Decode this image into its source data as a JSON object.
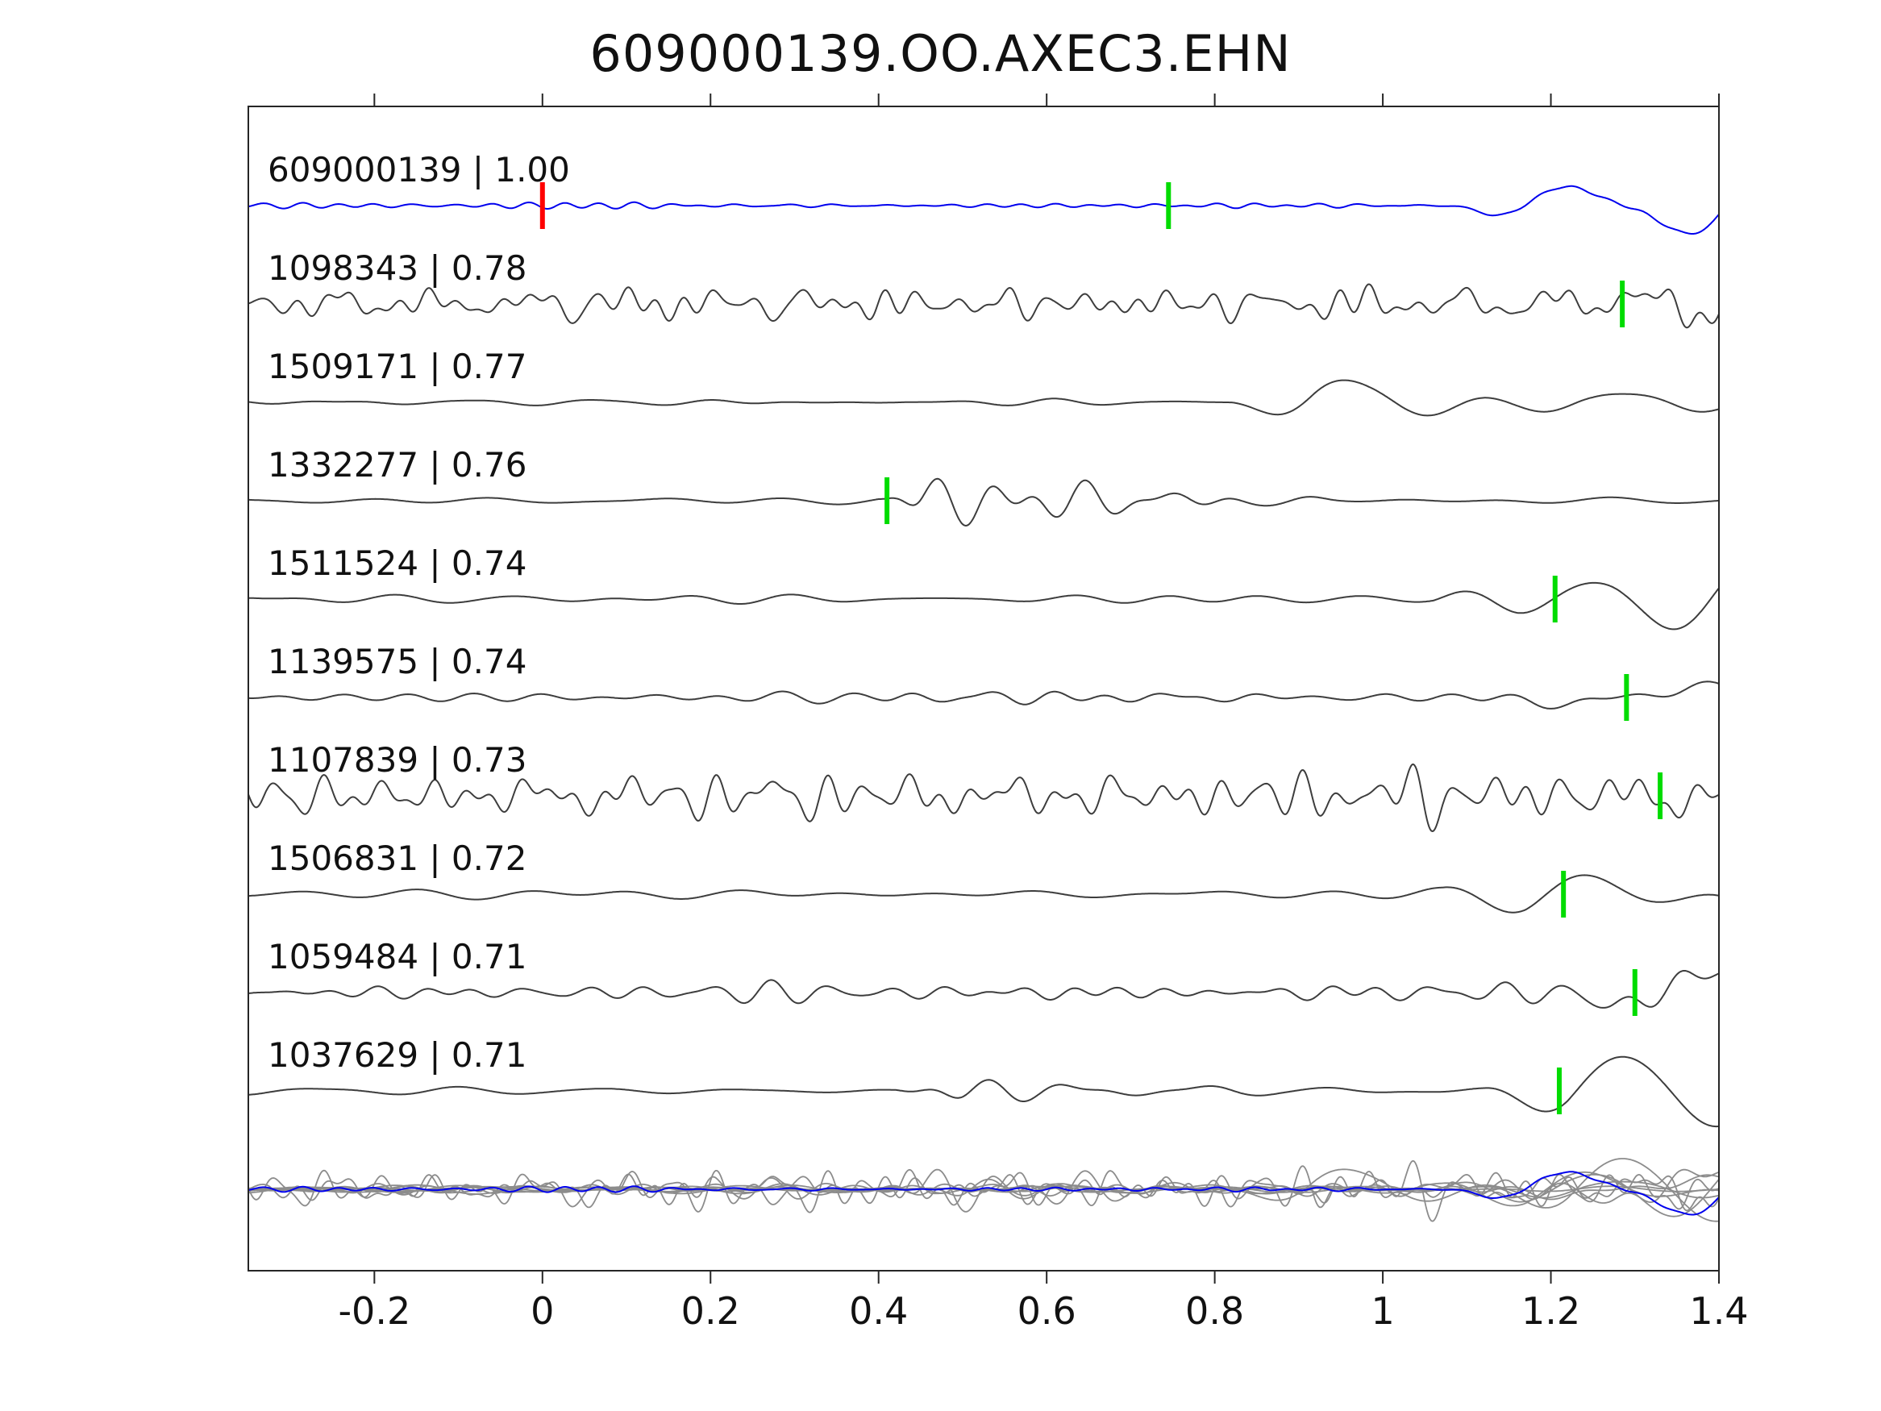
{
  "title": "609000139.OO.AXEC3.EHN",
  "chart_data": {
    "type": "line",
    "title": "609000139.OO.AXEC3.EHN",
    "xlabel": "",
    "ylabel": "",
    "grid": false,
    "axis": {
      "x_min": -0.35,
      "x_max": 1.4,
      "x_ticks": [
        -0.2,
        0,
        0.2,
        0.4,
        0.6,
        0.8,
        1,
        1.2,
        1.4
      ],
      "x_tick_labels": [
        "-0.2",
        "0",
        "0.2",
        "0.4",
        "0.6",
        "0.8",
        "1",
        "1.2",
        "1.4"
      ]
    },
    "colors": {
      "template_trace": "#0000ee",
      "detection_trace": "#3d3d3d",
      "overlay_trace": "#8c8c8c",
      "pick_red": "#ff0000",
      "pick_green": "#00dc00",
      "axis_line": "#262626",
      "text": "#111111"
    },
    "traces": [
      {
        "id": "609000139",
        "similarity": "1.00",
        "label": "609000139 | 1.00",
        "role": "template",
        "seed": 11,
        "picks": [
          {
            "t": 0.0,
            "color": "pick_red"
          },
          {
            "t": 0.745,
            "color": "pick_green"
          }
        ],
        "components": [
          {
            "freq": 24,
            "amp": 3.5,
            "env": [
              [
                -0.35,
                1
              ],
              [
                1.05,
                1
              ],
              [
                1.2,
                0.5
              ],
              [
                1.4,
                0.4
              ]
            ]
          },
          {
            "freq": 5.5,
            "amp": 50,
            "env": [
              [
                1.08,
                0
              ],
              [
                1.18,
                0.55
              ],
              [
                1.28,
                1
              ],
              [
                1.4,
                1
              ]
            ]
          }
        ]
      },
      {
        "id": "1098343",
        "similarity": "0.78",
        "label": "1098343 | 0.78",
        "role": "detection",
        "seed": 22,
        "picks": [
          {
            "t": 1.285,
            "color": "pick_green"
          }
        ],
        "components": [
          {
            "freq": 27,
            "amp": 15
          },
          {
            "freq": 13,
            "amp": 9
          },
          {
            "freq": 7,
            "amp": 22,
            "env": [
              [
                1.12,
                0
              ],
              [
                1.25,
                1
              ],
              [
                1.35,
                0.9
              ],
              [
                1.4,
                0.7
              ]
            ]
          }
        ]
      },
      {
        "id": "1509171",
        "similarity": "0.77",
        "label": "1509171 | 0.77",
        "role": "detection",
        "seed": 33,
        "picks": [],
        "components": [
          {
            "freq": 9,
            "amp": 3.5
          },
          {
            "freq": 4.6,
            "amp": 54,
            "env": [
              [
                0.82,
                0
              ],
              [
                0.92,
                0.9
              ],
              [
                1.02,
                1
              ],
              [
                1.12,
                0.85
              ],
              [
                1.25,
                0.4
              ],
              [
                1.4,
                0.3
              ]
            ]
          }
        ]
      },
      {
        "id": "1332277",
        "similarity": "0.76",
        "label": "1332277 | 0.76",
        "role": "detection",
        "seed": 44,
        "picks": [
          {
            "t": 0.41,
            "color": "pick_green"
          }
        ],
        "components": [
          {
            "freq": 6,
            "amp": 5
          },
          {
            "freq": 13,
            "amp": 40,
            "env": [
              [
                0.4,
                0
              ],
              [
                0.45,
                1
              ],
              [
                0.56,
                0.9
              ],
              [
                0.72,
                0.45
              ],
              [
                0.88,
                0.12
              ],
              [
                0.98,
                0
              ]
            ]
          }
        ]
      },
      {
        "id": "1511524",
        "similarity": "0.74",
        "label": "1511524 | 0.74",
        "role": "detection",
        "seed": 55,
        "picks": [
          {
            "t": 1.205,
            "color": "pick_green"
          }
        ],
        "components": [
          {
            "freq": 9,
            "amp": 6
          },
          {
            "freq": 4.6,
            "amp": 47,
            "env": [
              [
                1.06,
                0
              ],
              [
                1.16,
                0.6
              ],
              [
                1.28,
                1
              ],
              [
                1.4,
                1
              ]
            ]
          }
        ]
      },
      {
        "id": "1139575",
        "similarity": "0.74",
        "label": "1139575 | 0.74",
        "role": "detection",
        "seed": 66,
        "picks": [
          {
            "t": 1.29,
            "color": "pick_green"
          }
        ],
        "components": [
          {
            "freq": 10,
            "amp": 6
          },
          {
            "freq": 12,
            "amp": 13,
            "env": [
              [
                0.4,
                0
              ],
              [
                0.5,
                1
              ],
              [
                0.72,
                0.8
              ],
              [
                0.9,
                0.2
              ],
              [
                1.0,
                0
              ]
            ]
          },
          {
            "freq": 4.6,
            "amp": 47,
            "env": [
              [
                1.12,
                0
              ],
              [
                1.22,
                0.65
              ],
              [
                1.33,
                1
              ],
              [
                1.4,
                1
              ]
            ]
          }
        ]
      },
      {
        "id": "1107839",
        "similarity": "0.73",
        "label": "1107839 | 0.73",
        "role": "detection",
        "seed": 77,
        "picks": [
          {
            "t": 1.33,
            "color": "pick_green"
          }
        ],
        "components": [
          {
            "freq": 23,
            "amp": 25
          },
          {
            "freq": 11,
            "amp": 12
          },
          {
            "freq": 7,
            "amp": 16,
            "env": [
              [
                1.1,
                0
              ],
              [
                1.28,
                1
              ],
              [
                1.4,
                1
              ]
            ]
          }
        ]
      },
      {
        "id": "1506831",
        "similarity": "0.72",
        "label": "1506831 | 0.72",
        "role": "detection",
        "seed": 88,
        "picks": [
          {
            "t": 1.215,
            "color": "pick_green"
          }
        ],
        "components": [
          {
            "freq": 6.5,
            "amp": 8
          },
          {
            "freq": 4.6,
            "amp": 49,
            "env": [
              [
                1.07,
                0
              ],
              [
                1.17,
                0.8
              ],
              [
                1.3,
                1
              ],
              [
                1.4,
                1
              ]
            ]
          }
        ]
      },
      {
        "id": "1059484",
        "similarity": "0.71",
        "label": "1059484 | 0.71",
        "role": "detection",
        "seed": 99,
        "picks": [
          {
            "t": 1.3,
            "color": "pick_green"
          }
        ],
        "components": [
          {
            "freq": 17,
            "amp": 10
          },
          {
            "freq": 9,
            "amp": 7,
            "env": [
              [
                0.4,
                0
              ],
              [
                0.6,
                1
              ],
              [
                0.85,
                0.5
              ],
              [
                1.05,
                0.3
              ],
              [
                1.2,
                0.3
              ]
            ]
          },
          {
            "freq": 5,
            "amp": 45,
            "env": [
              [
                1.17,
                0
              ],
              [
                1.27,
                0.75
              ],
              [
                1.38,
                1
              ],
              [
                1.4,
                1
              ]
            ]
          }
        ]
      },
      {
        "id": "1037629",
        "similarity": "0.71",
        "label": "1037629 | 0.71",
        "role": "detection",
        "seed": 110,
        "picks": [
          {
            "t": 1.21,
            "color": "pick_green"
          }
        ],
        "components": [
          {
            "freq": 8,
            "amp": 5
          },
          {
            "freq": 12,
            "amp": 19,
            "env": [
              [
                0.42,
                0
              ],
              [
                0.5,
                1
              ],
              [
                0.66,
                0.7
              ],
              [
                0.84,
                0.18
              ],
              [
                0.95,
                0
              ]
            ]
          },
          {
            "freq": 4.6,
            "amp": 45,
            "env": [
              [
                1.12,
                0
              ],
              [
                1.22,
                1
              ],
              [
                1.4,
                1
              ]
            ]
          }
        ]
      }
    ],
    "overlay": {
      "scale": 0.9
    }
  }
}
